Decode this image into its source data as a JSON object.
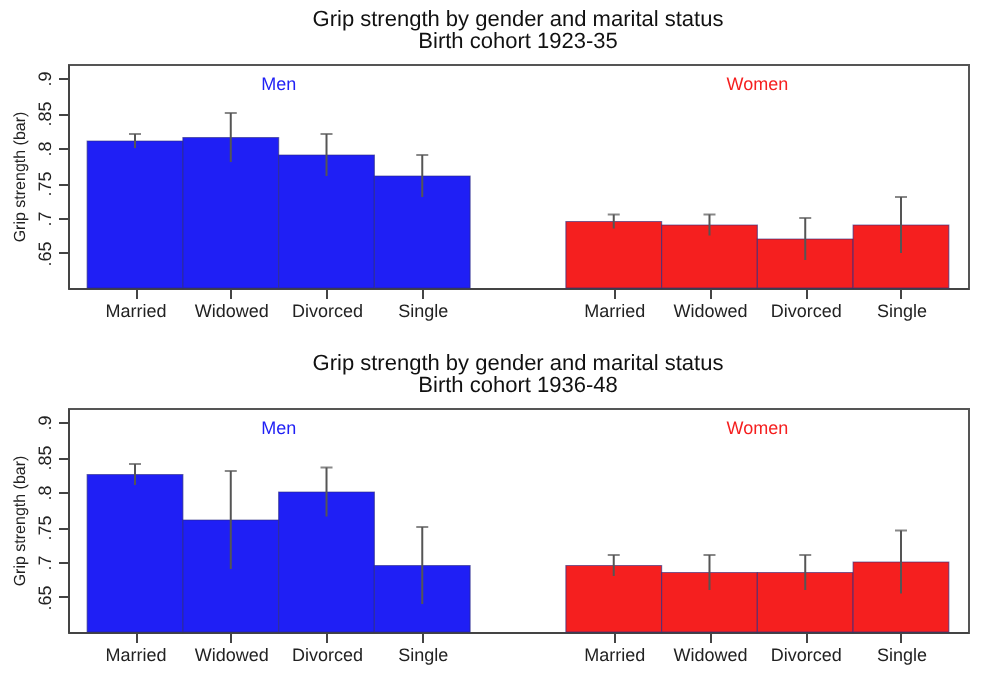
{
  "chart_data": [
    {
      "type": "bar",
      "title": "Grip strength by gender and marital status",
      "subtitle": "Birth cohort 1923-35",
      "ylabel": "Grip strength (bar)",
      "categories": [
        "Married",
        "Widowed",
        "Divorced",
        "Single",
        "Married",
        "Widowed",
        "Divorced",
        "Single"
      ],
      "series": [
        {
          "name": "Men",
          "color": "#1f1ff5",
          "values": [
            0.81,
            0.815,
            0.79,
            0.76,
            null,
            null,
            null,
            null
          ],
          "errors": [
            0.01,
            0.035,
            0.03,
            0.03,
            null,
            null,
            null,
            null
          ]
        },
        {
          "name": "Women",
          "color": "#f51f1f",
          "values": [
            null,
            null,
            null,
            null,
            0.695,
            0.69,
            0.67,
            0.69
          ],
          "errors": [
            null,
            null,
            null,
            null,
            0.01,
            0.015,
            0.03,
            0.04
          ]
        }
      ],
      "ylim": [
        0.6,
        0.92
      ],
      "yticks": [
        {
          "value": 0.65,
          "label": ".65"
        },
        {
          "value": 0.7,
          "label": ".7"
        },
        {
          "value": 0.75,
          "label": ".75"
        },
        {
          "value": 0.8,
          "label": ".8"
        },
        {
          "value": 0.85,
          "label": ".85"
        },
        {
          "value": 0.9,
          "label": ".9"
        }
      ],
      "grid": false,
      "legend": false
    },
    {
      "type": "bar",
      "title": "Grip strength by gender and marital status",
      "subtitle": "Birth cohort 1936-48",
      "ylabel": "Grip strength (bar)",
      "categories": [
        "Married",
        "Widowed",
        "Divorced",
        "Single",
        "Married",
        "Widowed",
        "Divorced",
        "Single"
      ],
      "series": [
        {
          "name": "Men",
          "color": "#1f1ff5",
          "values": [
            0.825,
            0.76,
            0.8,
            0.695,
            null,
            null,
            null,
            null
          ],
          "errors": [
            0.015,
            0.07,
            0.035,
            0.055,
            null,
            null,
            null,
            null
          ]
        },
        {
          "name": "Women",
          "color": "#f51f1f",
          "values": [
            null,
            null,
            null,
            null,
            0.695,
            0.685,
            0.685,
            0.7
          ],
          "errors": [
            null,
            null,
            null,
            null,
            0.015,
            0.025,
            0.025,
            0.045
          ]
        }
      ],
      "ylim": [
        0.6,
        0.92
      ],
      "yticks": [
        {
          "value": 0.65,
          "label": ".65"
        },
        {
          "value": 0.7,
          "label": ".7"
        },
        {
          "value": 0.75,
          "label": ".75"
        },
        {
          "value": 0.8,
          "label": ".8"
        },
        {
          "value": 0.85,
          "label": ".85"
        },
        {
          "value": 0.9,
          "label": ".9"
        }
      ],
      "grid": false,
      "legend": false
    }
  ]
}
